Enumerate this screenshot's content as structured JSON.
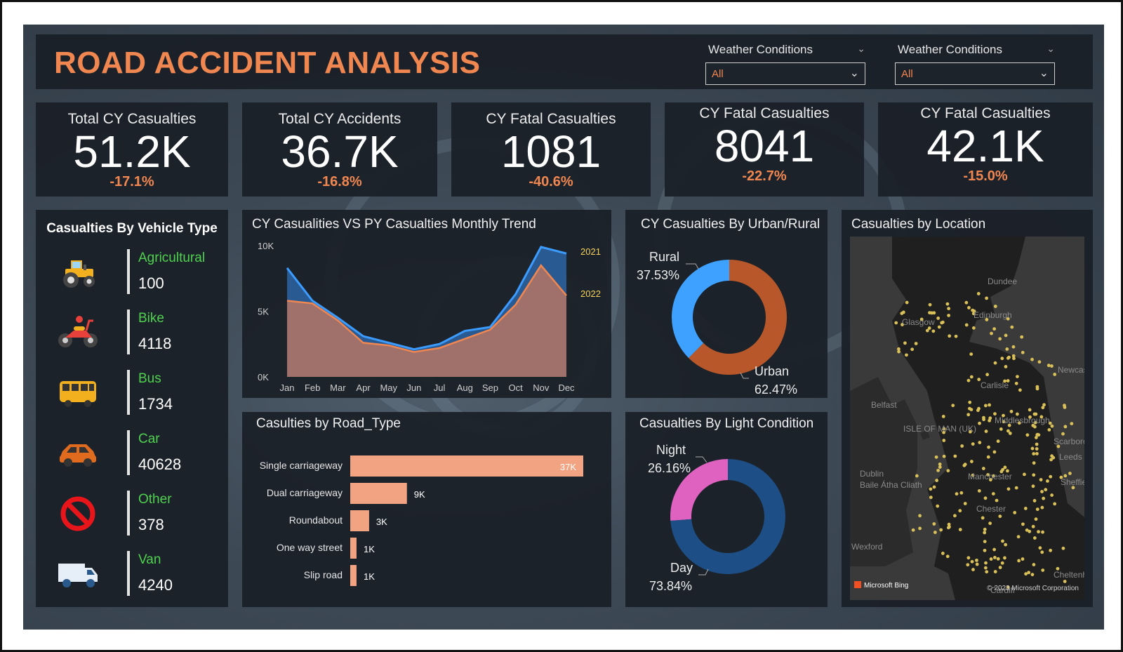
{
  "header": {
    "title": "ROAD ACCIDENT ANALYSIS",
    "filters": [
      {
        "label": "Weather Conditions",
        "value": "All"
      },
      {
        "label": "Weather Conditions",
        "value": "All"
      }
    ]
  },
  "kpis": [
    {
      "title": "Total CY Casualties",
      "value": "51.2K",
      "change": "-17.1%"
    },
    {
      "title": "Total CY Accidents",
      "value": "36.7K",
      "change": "-16.8%"
    },
    {
      "title": "CY Fatal Casualties",
      "value": "1081",
      "change": "-40.6%"
    },
    {
      "title": "CY Fatal Casualties",
      "value": "8041",
      "change": "-22.7%"
    },
    {
      "title": "CY Fatal Casualties",
      "value": "42.1K",
      "change": "-15.0%"
    }
  ],
  "vehicle_panel": {
    "title": "Casualties By Vehicle Type",
    "items": [
      {
        "label": "Agricultural",
        "value": "100",
        "icon": "tractor-icon"
      },
      {
        "label": "Bike",
        "value": "4118",
        "icon": "motorbike-icon"
      },
      {
        "label": "Bus",
        "value": "1734",
        "icon": "bus-icon"
      },
      {
        "label": "Car",
        "value": "40628",
        "icon": "car-icon"
      },
      {
        "label": "Other",
        "value": "378",
        "icon": "prohibited-icon"
      },
      {
        "label": "Van",
        "value": "4240",
        "icon": "van-icon"
      }
    ]
  },
  "location_panel": {
    "title": "Casualties by Location",
    "places": [
      "Dundee",
      "Edinburgh",
      "Glasgow",
      "Newcastle upon Tyne",
      "Carlisle",
      "Belfast",
      "ISLE OF MAN (UK)",
      "Middlesbrough",
      "Scarborough",
      "Leeds",
      "Manchester",
      "Sheffield",
      "Chester",
      "Dublin",
      "Baile Átha Cliath",
      "Wexford",
      "Cheltenham",
      "Cardiff"
    ],
    "attribution_left": "Microsoft Bing",
    "attribution_right": "© 2023 Microsoft Corporation"
  },
  "colors": {
    "accent": "#f08650",
    "kpi_change": "#f08650",
    "vehicle_label": "#4fd14f",
    "cy_line": "#3b9bff",
    "cy_area": "#2a5a92",
    "py_area": "#a57368",
    "rural": "#3ea0ff",
    "urban": "#b8582a",
    "night": "#e062c0",
    "day": "#1d4f86",
    "road_bar": "#f2a382",
    "map_dot": "#d9c058"
  },
  "chart_data": [
    {
      "type": "area",
      "title": "CY Casualities VS PY Casualties Monthly Trend",
      "categories": [
        "Jan",
        "Feb",
        "Mar",
        "Apr",
        "May",
        "Jun",
        "Jul",
        "Aug",
        "Sep",
        "Oct",
        "Nov",
        "Dec"
      ],
      "series": [
        {
          "name": "2021",
          "values": [
            8300,
            5800,
            4500,
            3100,
            2600,
            2100,
            2500,
            3500,
            3800,
            6300,
            9900,
            9400
          ]
        },
        {
          "name": "2022",
          "values": [
            5800,
            5600,
            4300,
            2600,
            2400,
            1900,
            2200,
            2900,
            3600,
            5500,
            8500,
            6200
          ]
        }
      ],
      "yticks": [
        "0K",
        "5K",
        "10K"
      ],
      "ylim": [
        0,
        10000
      ]
    },
    {
      "type": "pie",
      "title": "CY Casualties By Urban/Rural",
      "labels": [
        "Rural",
        "Urban"
      ],
      "values": [
        37.53,
        62.47
      ],
      "value_labels": [
        "37.53%",
        "62.47%"
      ]
    },
    {
      "type": "bar",
      "title": "Casulties by Road_Type",
      "categories": [
        "Single carriageway",
        "Dual carriageway",
        "Roundabout",
        "One way street",
        "Slip road"
      ],
      "values": [
        37,
        9,
        3,
        1,
        1
      ],
      "value_labels": [
        "37K",
        "9K",
        "3K",
        "1K",
        "1K"
      ],
      "xlim": [
        0,
        37
      ]
    },
    {
      "type": "pie",
      "title": "Casualties By Light Condition",
      "labels": [
        "Night",
        "Day"
      ],
      "values": [
        26.16,
        73.84
      ],
      "value_labels": [
        "26.16%",
        "73.84%"
      ]
    }
  ]
}
